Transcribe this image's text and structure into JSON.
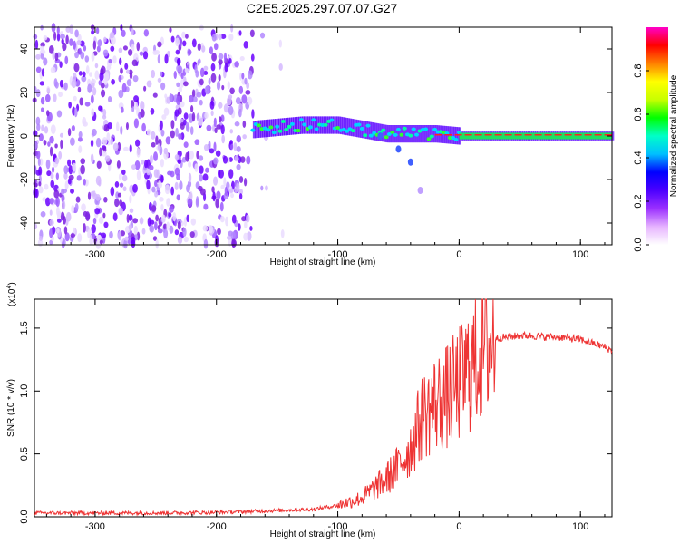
{
  "title": "C2E5.2025.297.07.07.G27",
  "chart_data": [
    {
      "type": "heatmap",
      "name": "spectrogram",
      "xlabel": "Height of straight line (km)",
      "ylabel": "Frequency (Hz)",
      "xlim": [
        -350,
        126
      ],
      "ylim": [
        -50,
        50
      ],
      "xticks": [
        -300,
        -200,
        -100,
        0,
        100
      ],
      "xtick_labels": [
        "-300",
        "-200",
        "-100",
        "0",
        "100"
      ],
      "yticks": [
        -40,
        -20,
        0,
        20,
        40
      ],
      "ytick_labels": [
        "-40",
        "-20",
        "0",
        "20",
        "40"
      ],
      "colorbar": {
        "label": "Normalized spectral amplitude",
        "range": [
          0,
          1
        ],
        "ticks": [
          0.0,
          0.2,
          0.4,
          0.6,
          0.8
        ],
        "tick_labels": [
          "0.0",
          "0.2",
          "0.4",
          "0.6",
          "0.8"
        ],
        "colors": [
          "#ffffff",
          "#e6b3ff",
          "#9b30ff",
          "#4b00ff",
          "#0000ff",
          "#00bfff",
          "#00ffc8",
          "#00ff00",
          "#c8ff00",
          "#ffff00",
          "#ff8000",
          "#ff0000",
          "#ff00c8"
        ]
      },
      "features": {
        "noise_region_x": [
          -350,
          -145
        ],
        "signal_band": [
          {
            "x": -170,
            "freq": 3
          },
          {
            "x": -130,
            "freq": 5
          },
          {
            "x": -100,
            "freq": 5
          },
          {
            "x": -80,
            "freq": 3
          },
          {
            "x": -60,
            "freq": 1
          },
          {
            "x": -40,
            "freq": 1
          },
          {
            "x": -20,
            "freq": 1
          },
          {
            "x": 0,
            "freq": 0
          },
          {
            "x": 126,
            "freq": 0
          }
        ],
        "branch": [
          {
            "x": -65,
            "freq": 0
          },
          {
            "x": -50,
            "freq": -6
          },
          {
            "x": -40,
            "freq": -12
          },
          {
            "x": -32,
            "freq": -25
          }
        ]
      }
    },
    {
      "type": "line",
      "name": "snr",
      "xlabel": "Height of straight line (km)",
      "ylabel": "SNR (10 * v/v)",
      "scale_label": "(x10",
      "scale_exp": "4",
      "scale_close": ")",
      "xlim": [
        -350,
        126
      ],
      "ylim": [
        0,
        17300
      ],
      "xticks": [
        -300,
        -200,
        -100,
        0,
        100
      ],
      "xtick_labels": [
        "-300",
        "-200",
        "-100",
        "0",
        "100"
      ],
      "yticks": [
        0,
        5000,
        10000,
        15000
      ],
      "ytick_labels": [
        "0.0",
        "0.5",
        "1.0",
        "1.5"
      ],
      "color": "#ee3333",
      "x": [
        -350,
        -300,
        -250,
        -200,
        -180,
        -150,
        -120,
        -100,
        -80,
        -60,
        -50,
        -40,
        -30,
        -20,
        -10,
        0,
        10,
        20,
        30,
        40,
        50,
        60,
        70,
        80,
        90,
        100,
        110,
        120,
        126
      ],
      "y": [
        300,
        300,
        300,
        350,
        400,
        500,
        600,
        900,
        1500,
        3000,
        4000,
        5500,
        8000,
        9000,
        9500,
        10500,
        12000,
        13500,
        14200,
        14300,
        14400,
        14400,
        14300,
        14300,
        14200,
        14100,
        13800,
        13500,
        13200
      ]
    }
  ]
}
